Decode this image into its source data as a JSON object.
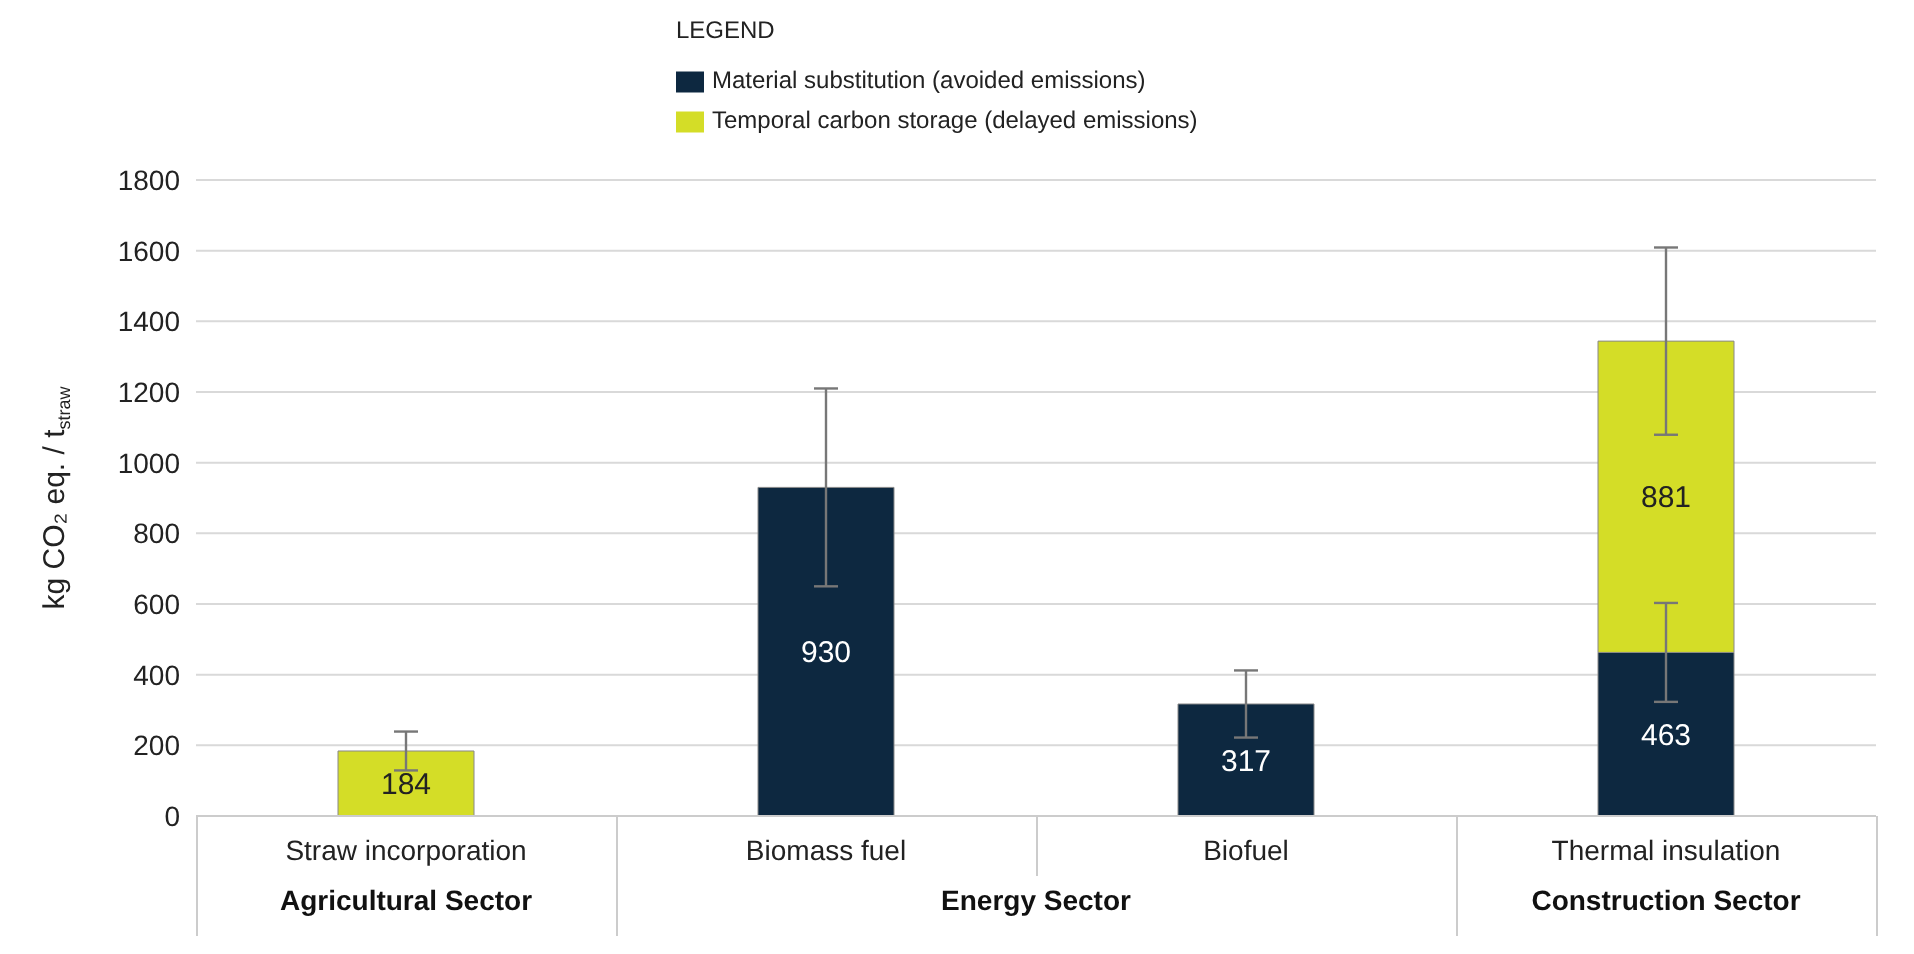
{
  "chart_data": {
    "type": "bar",
    "stacked": true,
    "legend_title": "LEGEND",
    "legend": "top",
    "ylabel": "kg CO₂ eq. / t$_{straw}$",
    "categories": [
      "Straw incorporation",
      "Biomass fuel",
      "Biofuel",
      "Thermal insulation"
    ],
    "series": [
      {
        "name": "Material substitution (avoided emissions)",
        "color": "#0d2840",
        "values": [
          null,
          930,
          317,
          463
        ],
        "errors": [
          null,
          280,
          95,
          140
        ]
      },
      {
        "name": "Temporal carbon storage (delayed emissions)",
        "color": "#d4dd27",
        "values": [
          184,
          null,
          null,
          881
        ],
        "errors": [
          55,
          null,
          null,
          265
        ]
      }
    ],
    "ylim": [
      0,
      1800
    ],
    "yticks": [
      0,
      200,
      400,
      600,
      800,
      1000,
      1200,
      1400,
      1600,
      1800
    ],
    "grid": "y",
    "data_labels": true,
    "annotations": [
      "Agricultural Sector",
      "Energy Sector",
      "Construction Sector"
    ]
  }
}
